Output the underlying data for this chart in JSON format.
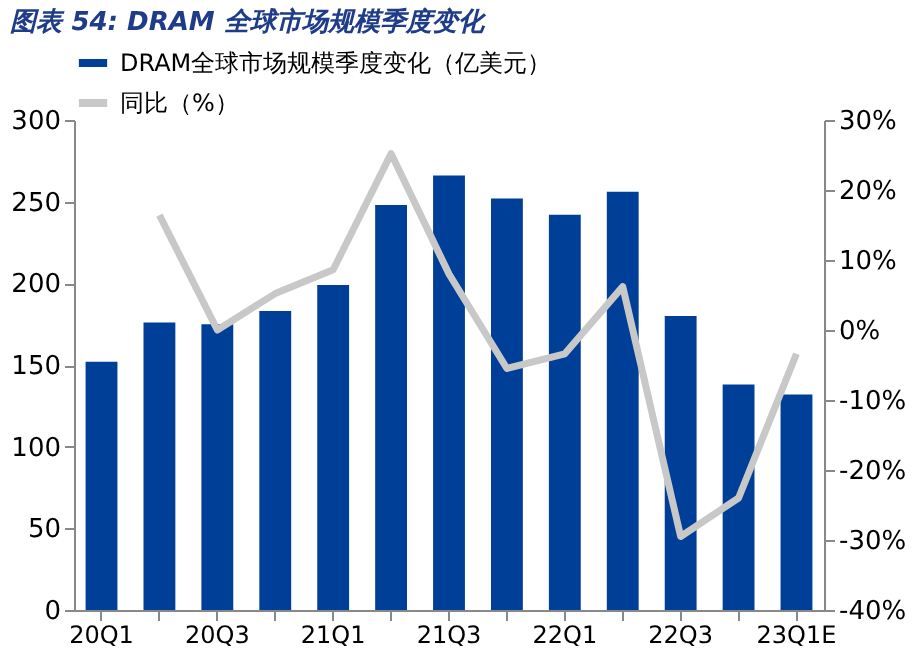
{
  "chart_data": {
    "type": "bar",
    "title": "图表 54:  DRAM 全球市场规模季度变化",
    "categories": [
      "20Q1",
      null,
      "20Q3",
      null,
      "21Q1",
      null,
      "21Q3",
      null,
      "22Q1",
      null,
      "22Q3",
      null,
      "23Q1E"
    ],
    "series": [
      {
        "name": "DRAM全球市场规模季度变化（亿美元）",
        "color": "#003f98",
        "values": [
          152,
          176,
          175,
          183,
          199,
          248,
          266,
          252,
          242,
          256,
          180,
          138,
          132
        ]
      },
      {
        "name": "同比（%）",
        "type": "line",
        "axis": "y2",
        "color": "#c8c8c8",
        "values": [
          null,
          16.4,
          0,
          5.2,
          8.6,
          25.2,
          8,
          -5.5,
          -3.4,
          6.2,
          -29.5,
          -24,
          -3.4
        ]
      }
    ],
    "ylim": [
      0,
      300
    ],
    "yticks": [
      0,
      50,
      100,
      150,
      200,
      250,
      300
    ],
    "y2lim": [
      -40,
      30
    ],
    "y2ticks": [
      {
        "value": -40,
        "label": "-40%"
      },
      {
        "value": -30,
        "label": "-30%"
      },
      {
        "value": -20,
        "label": "-20%"
      },
      {
        "value": -10,
        "label": "-10%"
      },
      {
        "value": 0,
        "label": "0%"
      },
      {
        "value": 10,
        "label": "10%"
      },
      {
        "value": 20,
        "label": "20%"
      },
      {
        "value": 30,
        "label": "30%"
      }
    ],
    "legend": "top",
    "grid": false,
    "marker": "none",
    "line_style": "solid"
  }
}
